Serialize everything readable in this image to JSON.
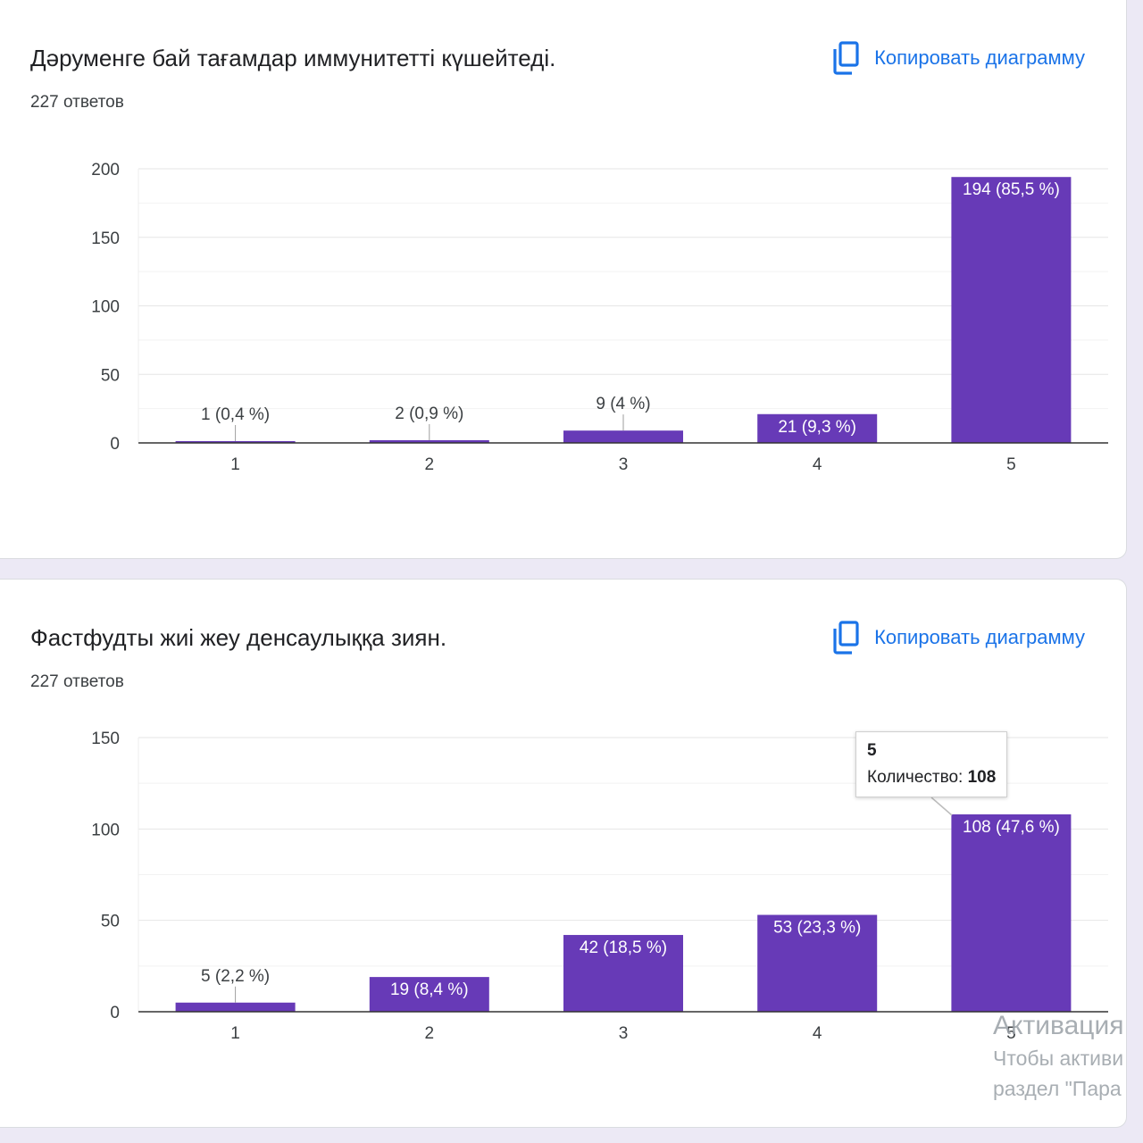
{
  "accent_color": "#673ab7",
  "link_color": "#1a73e8",
  "cards": [
    {
      "title": "Дәруменге бай тағамдар иммунитетті күшейтеді.",
      "responses": "227 ответов",
      "copy_label": "Копировать диаграмму",
      "copy_icon": "copy-icon"
    },
    {
      "title": "Фастфудты жиі жеу денсаулыққа зиян.",
      "responses": "227 ответов",
      "copy_label": "Копировать диаграмму",
      "copy_icon": "copy-icon"
    }
  ],
  "chart_data": [
    {
      "type": "bar",
      "categories": [
        "1",
        "2",
        "3",
        "4",
        "5"
      ],
      "values": [
        1,
        2,
        9,
        21,
        194
      ],
      "data_labels": [
        "1 (0,4 %)",
        "2 (0,9 %)",
        "9 (4 %)",
        "21 (9,3 %)",
        "194 (85,5 %)"
      ],
      "ylim": [
        0,
        200
      ],
      "yticks": [
        0,
        50,
        100,
        150,
        200
      ],
      "grid": true,
      "bar_color": "#673ab7"
    },
    {
      "type": "bar",
      "categories": [
        "1",
        "2",
        "3",
        "4",
        "5"
      ],
      "values": [
        5,
        19,
        42,
        53,
        108
      ],
      "data_labels": [
        "5 (2,2 %)",
        "19 (8,4 %)",
        "42 (18,5 %)",
        "53 (23,3 %)",
        "108 (47,6 %)"
      ],
      "ylim": [
        0,
        150
      ],
      "yticks": [
        0,
        50,
        100,
        150
      ],
      "grid": true,
      "bar_color": "#673ab7",
      "tooltip": {
        "category": "5",
        "label": "Количество:",
        "value": "108"
      }
    }
  ],
  "watermark": {
    "title": "Активация",
    "line1": "Чтобы активи",
    "line2": "раздел \"Пара"
  }
}
